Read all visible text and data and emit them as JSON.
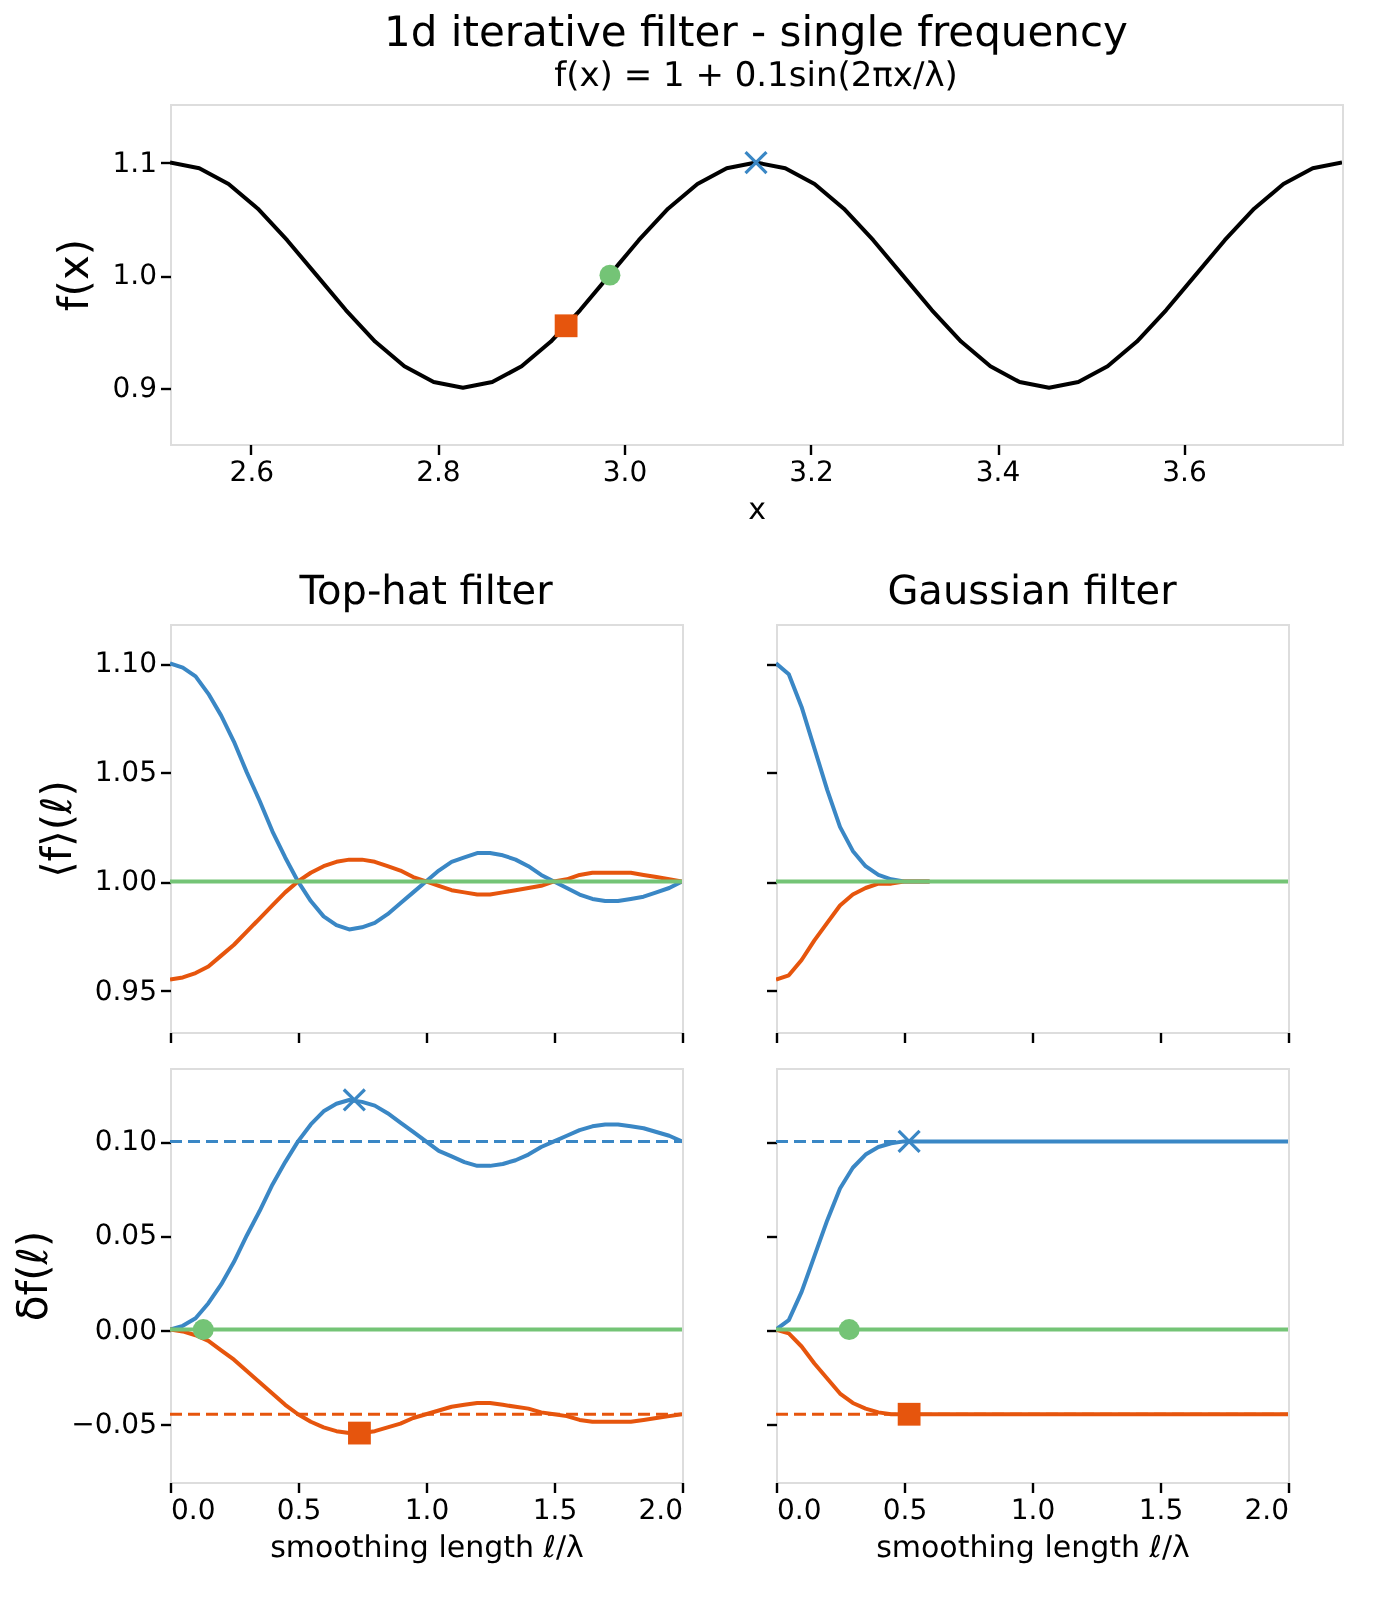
{
  "chart_data": [
    {
      "type": "line",
      "title": "1d iterative filter - single frequency",
      "subtitle": "f(x) = 1 + 0.1sin(2πx/λ)",
      "xlabel": "x",
      "ylabel": "f(x)",
      "xlim": [
        2.5133,
        3.7699
      ],
      "ylim": [
        0.85,
        1.152
      ],
      "xticks": [
        2.6,
        2.8,
        {
          "value": 3.0,
          "label": "3.0"
        },
        3.2,
        3.4,
        3.6
      ],
      "yticks": [
        0.9,
        {
          "value": 1.0,
          "label": "1.0"
        },
        1.1
      ],
      "grid": false,
      "x": [
        2.5133,
        2.5447,
        2.5761,
        2.6075,
        2.6389,
        2.6704,
        2.7018,
        2.7332,
        2.7646,
        2.796,
        2.8274,
        2.8588,
        2.8903,
        2.9217,
        2.9531,
        2.9845,
        3.0159,
        3.0473,
        3.0788,
        3.1102,
        3.1416,
        3.173,
        3.2044,
        3.2358,
        3.2673,
        3.2987,
        3.3301,
        3.3615,
        3.3929,
        3.4243,
        3.4558,
        3.4872,
        3.5186,
        3.55,
        3.5814,
        3.6128,
        3.6442,
        3.6757,
        3.7071,
        3.7385,
        3.7699
      ],
      "series": [
        {
          "type": "line",
          "color": "#000000",
          "line_style": "solid",
          "values": [
            1.1,
            1.095,
            1.081,
            1.059,
            1.031,
            1.0,
            0.969,
            0.941,
            0.919,
            0.905,
            0.9,
            0.905,
            0.919,
            0.941,
            0.969,
            1.0,
            1.031,
            1.059,
            1.081,
            1.095,
            1.1,
            1.095,
            1.081,
            1.059,
            1.031,
            1.0,
            0.969,
            0.941,
            0.919,
            0.905,
            0.9,
            0.905,
            0.919,
            0.941,
            0.969,
            1.0,
            1.031,
            1.059,
            1.081,
            1.095,
            1.1
          ]
        },
        {
          "type": "scatter",
          "marker": "cross",
          "color": "#3a87c5",
          "x": [
            3.1416
          ],
          "values": [
            1.1
          ]
        },
        {
          "type": "scatter",
          "marker": "circle",
          "color": "#74c476",
          "x": [
            2.985
          ],
          "values": [
            1.0
          ]
        },
        {
          "type": "scatter",
          "marker": "square",
          "color": "#e6550d",
          "x": [
            2.938
          ],
          "values": [
            0.955
          ]
        }
      ]
    },
    {
      "type": "line",
      "title": "Top-hat filter",
      "ylabel": "⟨f⟩(ℓ)",
      "xlim": [
        0,
        2
      ],
      "ylim": [
        0.931,
        1.118
      ],
      "tick_labels": "y",
      "xticks": [
        0,
        0.5,
        1,
        1.5,
        2
      ],
      "yticks": [
        {
          "value": 0.95,
          "label": "0.95"
        },
        {
          "value": 1.0,
          "label": "1.00"
        },
        {
          "value": 1.05,
          "label": "1.05"
        },
        {
          "value": 1.1,
          "label": "1.10"
        }
      ],
      "grid": false,
      "x": [
        0,
        0.05,
        0.1,
        0.15,
        0.2,
        0.25,
        0.3,
        0.35,
        0.4,
        0.45,
        0.5,
        0.55,
        0.6,
        0.65,
        0.7,
        0.75,
        0.8,
        0.85,
        0.9,
        0.95,
        1.0,
        1.05,
        1.1,
        1.15,
        1.2,
        1.25,
        1.3,
        1.35,
        1.4,
        1.45,
        1.5,
        1.55,
        1.6,
        1.65,
        1.7,
        1.75,
        1.8,
        1.85,
        1.9,
        1.95,
        2.0
      ],
      "series": [
        {
          "type": "line",
          "color": "#3a87c5",
          "line_style": "solid",
          "values": [
            1.1,
            1.098,
            1.094,
            1.086,
            1.076,
            1.064,
            1.05,
            1.037,
            1.023,
            1.011,
            1.0,
            0.991,
            0.984,
            0.98,
            0.978,
            0.979,
            0.981,
            0.985,
            0.99,
            0.995,
            1.0,
            1.005,
            1.009,
            1.011,
            1.013,
            1.013,
            1.012,
            1.01,
            1.007,
            1.003,
            1.0,
            0.997,
            0.994,
            0.992,
            0.991,
            0.991,
            0.992,
            0.993,
            0.995,
            0.997,
            1.0
          ]
        },
        {
          "type": "line",
          "color": "#e6550d",
          "line_style": "solid",
          "values": [
            0.955,
            0.956,
            0.958,
            0.961,
            0.966,
            0.971,
            0.977,
            0.983,
            0.989,
            0.995,
            1.0,
            1.004,
            1.007,
            1.009,
            1.01,
            1.01,
            1.009,
            1.007,
            1.005,
            1.002,
            1.0,
            0.998,
            0.996,
            0.995,
            0.994,
            0.994,
            0.995,
            0.996,
            0.997,
            0.998,
            1.0,
            1.001,
            1.003,
            1.004,
            1.004,
            1.004,
            1.004,
            1.003,
            1.002,
            1.001,
            1.0
          ]
        },
        {
          "type": "line",
          "color": "#74c476",
          "line_style": "solid",
          "x": [
            0,
            2
          ],
          "values": [
            1.0,
            1.0
          ]
        }
      ]
    },
    {
      "type": "line",
      "title": "Gaussian filter",
      "xlim": [
        0,
        2
      ],
      "ylim": [
        0.931,
        1.118
      ],
      "tick_labels": false,
      "xticks": [
        0,
        0.5,
        1,
        1.5,
        2
      ],
      "yticks": [
        0.95,
        1.0,
        1.05,
        1.1
      ],
      "grid": false,
      "x": [
        0,
        0.05,
        0.1,
        0.15,
        0.2,
        0.25,
        0.3,
        0.35,
        0.4,
        0.45,
        0.5,
        0.6
      ],
      "series": [
        {
          "type": "line",
          "color": "#3a87c5",
          "line_style": "solid",
          "values": [
            1.1,
            1.095,
            1.08,
            1.061,
            1.042,
            1.025,
            1.014,
            1.007,
            1.003,
            1.001,
            1.0,
            1.0
          ]
        },
        {
          "type": "line",
          "color": "#e6550d",
          "line_style": "solid",
          "values": [
            0.955,
            0.957,
            0.964,
            0.973,
            0.981,
            0.989,
            0.994,
            0.997,
            0.999,
            0.999,
            1.0,
            1.0
          ]
        },
        {
          "type": "line",
          "color": "#74c476",
          "line_style": "solid",
          "x": [
            0,
            2
          ],
          "values": [
            1.0,
            1.0
          ]
        }
      ]
    },
    {
      "type": "line",
      "xlabel": "smoothing length ℓ/λ",
      "ylabel": "δf(ℓ)",
      "xlim": [
        0,
        2
      ],
      "ylim": [
        -0.081,
        0.139
      ],
      "xticks": [
        {
          "value": 0,
          "label": "0.0"
        },
        {
          "value": 0.5,
          "label": "0.5"
        },
        {
          "value": 1,
          "label": "1.0"
        },
        {
          "value": 1.5,
          "label": "1.5"
        },
        {
          "value": 2,
          "label": "2.0"
        }
      ],
      "yticks": [
        {
          "value": -0.05,
          "label": "−0.05"
        },
        {
          "value": 0,
          "label": "0.00"
        },
        {
          "value": 0.05,
          "label": "0.05"
        },
        {
          "value": 0.1,
          "label": "0.10"
        }
      ],
      "grid": false,
      "ref_lines": [
        {
          "axis": "y",
          "value": 0.1,
          "color": "#3a87c5",
          "line_style": "dashed"
        },
        {
          "axis": "y",
          "value": -0.045,
          "color": "#e6550d",
          "line_style": "dashed"
        }
      ],
      "x": [
        0,
        0.05,
        0.1,
        0.15,
        0.2,
        0.25,
        0.3,
        0.35,
        0.4,
        0.45,
        0.5,
        0.55,
        0.6,
        0.65,
        0.7,
        0.75,
        0.8,
        0.85,
        0.9,
        0.95,
        1.0,
        1.05,
        1.1,
        1.15,
        1.2,
        1.25,
        1.3,
        1.35,
        1.4,
        1.45,
        1.5,
        1.55,
        1.6,
        1.65,
        1.7,
        1.75,
        1.8,
        1.85,
        1.9,
        1.95,
        2.0
      ],
      "series": [
        {
          "type": "line",
          "color": "#3a87c5",
          "line_style": "solid",
          "values": [
            0,
            0.002,
            0.006,
            0.014,
            0.024,
            0.036,
            0.05,
            0.063,
            0.077,
            0.089,
            0.1,
            0.109,
            0.116,
            0.12,
            0.122,
            0.121,
            0.119,
            0.115,
            0.11,
            0.105,
            0.1,
            0.095,
            0.092,
            0.089,
            0.087,
            0.087,
            0.088,
            0.09,
            0.093,
            0.097,
            0.1,
            0.103,
            0.106,
            0.108,
            0.109,
            0.109,
            0.108,
            0.107,
            0.105,
            0.103,
            0.1
          ]
        },
        {
          "type": "line",
          "color": "#e6550d",
          "line_style": "solid",
          "values": [
            0,
            -0.001,
            -0.003,
            -0.006,
            -0.011,
            -0.016,
            -0.022,
            -0.028,
            -0.034,
            -0.04,
            -0.045,
            -0.049,
            -0.052,
            -0.054,
            -0.055,
            -0.055,
            -0.054,
            -0.052,
            -0.05,
            -0.047,
            -0.045,
            -0.043,
            -0.041,
            -0.04,
            -0.039,
            -0.039,
            -0.04,
            -0.041,
            -0.042,
            -0.044,
            -0.045,
            -0.046,
            -0.048,
            -0.049,
            -0.049,
            -0.049,
            -0.049,
            -0.048,
            -0.047,
            -0.046,
            -0.045
          ]
        },
        {
          "type": "line",
          "color": "#74c476",
          "line_style": "solid",
          "x": [
            0,
            2
          ],
          "values": [
            0,
            0
          ]
        },
        {
          "type": "scatter",
          "marker": "cross",
          "color": "#3a87c5",
          "x": [
            0.72
          ],
          "values": [
            0.122
          ]
        },
        {
          "type": "scatter",
          "marker": "circle",
          "color": "#74c476",
          "x": [
            0.13
          ],
          "values": [
            0
          ]
        },
        {
          "type": "scatter",
          "marker": "square",
          "color": "#e6550d",
          "x": [
            0.74
          ],
          "values": [
            -0.055
          ]
        }
      ]
    },
    {
      "type": "line",
      "xlabel": "smoothing length ℓ/λ",
      "xlim": [
        0,
        2
      ],
      "ylim": [
        -0.081,
        0.139
      ],
      "tick_labels": "x",
      "xticks": [
        {
          "value": 0,
          "label": "0.0"
        },
        {
          "value": 0.5,
          "label": "0.5"
        },
        {
          "value": 1,
          "label": "1.0"
        },
        {
          "value": 1.5,
          "label": "1.5"
        },
        {
          "value": 2,
          "label": "2.0"
        }
      ],
      "yticks": [
        -0.05,
        0,
        0.05,
        0.1
      ],
      "grid": false,
      "ref_lines": [
        {
          "axis": "y",
          "value": 0.1,
          "color": "#3a87c5",
          "line_style": "dashed"
        },
        {
          "axis": "y",
          "value": -0.045,
          "color": "#e6550d",
          "line_style": "dashed"
        }
      ],
      "x": [
        0,
        0.05,
        0.1,
        0.15,
        0.2,
        0.25,
        0.3,
        0.35,
        0.4,
        0.45,
        0.5,
        0.6,
        1.0,
        1.5,
        2.0
      ],
      "series": [
        {
          "type": "line",
          "color": "#3a87c5",
          "line_style": "solid",
          "values": [
            0,
            0.005,
            0.02,
            0.039,
            0.058,
            0.075,
            0.086,
            0.093,
            0.097,
            0.099,
            0.1,
            0.1,
            0.1,
            0.1,
            0.1
          ]
        },
        {
          "type": "line",
          "color": "#e6550d",
          "line_style": "solid",
          "values": [
            0,
            -0.002,
            -0.009,
            -0.018,
            -0.026,
            -0.034,
            -0.039,
            -0.042,
            -0.044,
            -0.045,
            -0.045,
            -0.045,
            -0.045,
            -0.045,
            -0.045
          ]
        },
        {
          "type": "line",
          "color": "#74c476",
          "line_style": "solid",
          "x": [
            0,
            2
          ],
          "values": [
            0,
            0
          ]
        },
        {
          "type": "scatter",
          "marker": "cross",
          "color": "#3a87c5",
          "x": [
            0.52
          ],
          "values": [
            0.1
          ]
        },
        {
          "type": "scatter",
          "marker": "circle",
          "color": "#74c476",
          "x": [
            0.286
          ],
          "values": [
            0
          ]
        },
        {
          "type": "scatter",
          "marker": "square",
          "color": "#e6550d",
          "x": [
            0.52
          ],
          "values": [
            -0.045
          ]
        }
      ]
    }
  ]
}
